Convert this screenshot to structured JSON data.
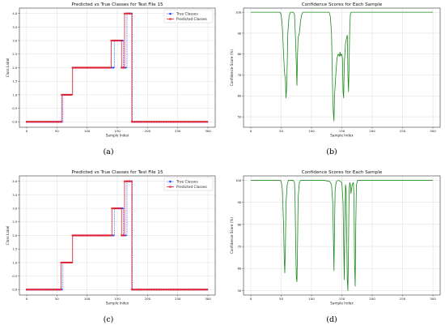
{
  "captions": [
    "(a)",
    "(b)",
    "(c)",
    "(d)"
  ],
  "chart_data": [
    {
      "type": "line",
      "title": "Predicted vs True Classes for Test File 15",
      "xlabel": "Sample Index",
      "ylabel": "Class Label",
      "xlim": [
        -12,
        312
      ],
      "ylim": [
        -0.2,
        4.2
      ],
      "xticks": [
        "0",
        "50",
        "100",
        "150",
        "200",
        "250",
        "300"
      ],
      "yticks": [
        "0.0",
        "0.5",
        "1.0",
        "1.5",
        "2.0",
        "2.5",
        "3.0",
        "3.5",
        "4.0"
      ],
      "grid": true,
      "legend_position": "top-right",
      "series": [
        {
          "name": "True Classes",
          "style": "dotted",
          "marker": "circle",
          "color": "#1f3fff",
          "steps": [
            [
              0,
              60,
              0
            ],
            [
              60,
              76,
              1
            ],
            [
              76,
              145,
              2
            ],
            [
              145,
              160,
              3
            ],
            [
              160,
              166,
              2
            ],
            [
              166,
              175,
              4
            ],
            [
              175,
              300,
              0
            ]
          ]
        },
        {
          "name": "Predicted Classes",
          "style": "solid",
          "marker": "x",
          "color": "#e8202a",
          "steps": [
            [
              0,
              58,
              0
            ],
            [
              58,
              76,
              1
            ],
            [
              76,
              140,
              2
            ],
            [
              140,
              157,
              3
            ],
            [
              157,
              162,
              2
            ],
            [
              162,
              174,
              4
            ],
            [
              174,
              300,
              0
            ]
          ]
        }
      ]
    },
    {
      "type": "line",
      "title": "Confidence Scores for Each Sample",
      "xlabel": "Sample Index",
      "ylabel": "Confidence Score (%)",
      "xlim": [
        -12,
        312
      ],
      "ylim": [
        45,
        102
      ],
      "xticks": [
        "0",
        "50",
        "100",
        "150",
        "200",
        "250",
        "300"
      ],
      "yticks": [
        "50",
        "60",
        "70",
        "80",
        "90",
        "100"
      ],
      "grid": true,
      "series": [
        {
          "color": "#1a8a1a",
          "points": [
            [
              0,
              100
            ],
            [
              48,
              100
            ],
            [
              50,
              99
            ],
            [
              52,
              93
            ],
            [
              54,
              80
            ],
            [
              55,
              74
            ],
            [
              56,
              70
            ],
            [
              57,
              68
            ],
            [
              58,
              59
            ],
            [
              59,
              64
            ],
            [
              60,
              75
            ],
            [
              61,
              90
            ],
            [
              63,
              98
            ],
            [
              65,
              100
            ],
            [
              70,
              100
            ],
            [
              72,
              99
            ],
            [
              74,
              85
            ],
            [
              75,
              75
            ],
            [
              76,
              65
            ],
            [
              77,
              80
            ],
            [
              78,
              88
            ],
            [
              80,
              90
            ],
            [
              82,
              96
            ],
            [
              84,
              99
            ],
            [
              86,
              100
            ],
            [
              129,
              100
            ],
            [
              131,
              98
            ],
            [
              133,
              90
            ],
            [
              135,
              60
            ],
            [
              136,
              52
            ],
            [
              137,
              48
            ],
            [
              138,
              60
            ],
            [
              140,
              70
            ],
            [
              142,
              78
            ],
            [
              144,
              80
            ],
            [
              146,
              79
            ],
            [
              147,
              81
            ],
            [
              148,
              79
            ],
            [
              149,
              80
            ],
            [
              150,
              80
            ],
            [
              151,
              78
            ],
            [
              152,
              62
            ],
            [
              153,
              59
            ],
            [
              154,
              75
            ],
            [
              156,
              85
            ],
            [
              158,
              88
            ],
            [
              159,
              89
            ],
            [
              160,
              70
            ],
            [
              161,
              62
            ],
            [
              162,
              75
            ],
            [
              163,
              92
            ],
            [
              164,
              99
            ],
            [
              165,
              100
            ],
            [
              300,
              100
            ]
          ]
        }
      ]
    },
    {
      "type": "line",
      "title": "Predicted vs True Classes for Test File 15",
      "xlabel": "Sample Index",
      "ylabel": "Class Label",
      "xlim": [
        -12,
        312
      ],
      "ylim": [
        -0.2,
        4.2
      ],
      "xticks": [
        "0",
        "50",
        "100",
        "150",
        "200",
        "250",
        "300"
      ],
      "yticks": [
        "0.0",
        "0.5",
        "1.0",
        "1.5",
        "2.0",
        "2.5",
        "3.0",
        "3.5",
        "4.0"
      ],
      "grid": true,
      "legend_position": "top-right",
      "series": [
        {
          "name": "True Classes",
          "style": "dotted",
          "marker": "circle",
          "color": "#1f3fff",
          "steps": [
            [
              0,
              60,
              0
            ],
            [
              60,
              76,
              1
            ],
            [
              76,
              145,
              2
            ],
            [
              145,
              160,
              3
            ],
            [
              160,
              166,
              2
            ],
            [
              166,
              175,
              4
            ],
            [
              175,
              300,
              0
            ]
          ]
        },
        {
          "name": "Predicted Classes",
          "style": "solid",
          "marker": "x",
          "color": "#e8202a",
          "steps": [
            [
              0,
              57,
              0
            ],
            [
              57,
              76,
              1
            ],
            [
              76,
              141,
              2
            ],
            [
              141,
              157,
              3
            ],
            [
              157,
              162,
              2
            ],
            [
              162,
              174,
              4
            ],
            [
              174,
              300,
              0
            ]
          ]
        }
      ]
    },
    {
      "type": "line",
      "title": "Confidence Scores for Each Sample",
      "xlabel": "Sample Index",
      "ylabel": "Confidence Score (%)",
      "xlim": [
        -12,
        312
      ],
      "ylim": [
        48,
        102
      ],
      "xticks": [
        "0",
        "50",
        "100",
        "150",
        "200",
        "250",
        "300"
      ],
      "yticks": [
        "50",
        "60",
        "70",
        "80",
        "90",
        "100"
      ],
      "grid": true,
      "series": [
        {
          "color": "#1a8a1a",
          "points": [
            [
              0,
              100
            ],
            [
              48,
              100
            ],
            [
              50,
              99.5
            ],
            [
              52,
              96
            ],
            [
              54,
              80
            ],
            [
              55,
              65
            ],
            [
              56,
              58
            ],
            [
              57,
              70
            ],
            [
              58,
              90
            ],
            [
              60,
              98
            ],
            [
              62,
              100
            ],
            [
              70,
              100
            ],
            [
              72,
              99
            ],
            [
              73,
              90
            ],
            [
              74,
              70
            ],
            [
              75,
              56
            ],
            [
              76,
              54
            ],
            [
              77,
              70
            ],
            [
              78,
              92
            ],
            [
              80,
              99
            ],
            [
              82,
              100
            ],
            [
              120,
              100
            ],
            [
              130,
              99.5
            ],
            [
              133,
              98
            ],
            [
              135,
              90
            ],
            [
              136,
              75
            ],
            [
              137,
              59
            ],
            [
              138,
              80
            ],
            [
              139,
              96
            ],
            [
              141,
              99.5
            ],
            [
              145,
              100
            ],
            [
              150,
              99
            ],
            [
              152,
              90
            ],
            [
              153,
              72
            ],
            [
              154,
              55
            ],
            [
              155,
              80
            ],
            [
              156,
              98
            ],
            [
              157,
              96
            ],
            [
              158,
              75
            ],
            [
              159,
              55
            ],
            [
              160,
              50
            ],
            [
              161,
              70
            ],
            [
              162,
              95
            ],
            [
              163,
              99
            ],
            [
              164,
              98
            ],
            [
              165,
              94
            ],
            [
              167,
              98
            ],
            [
              169,
              99
            ],
            [
              170,
              93
            ],
            [
              171,
              62
            ],
            [
              172,
              52
            ],
            [
              173,
              80
            ],
            [
              174,
              98
            ],
            [
              176,
              100
            ],
            [
              300,
              100
            ]
          ]
        }
      ]
    }
  ]
}
